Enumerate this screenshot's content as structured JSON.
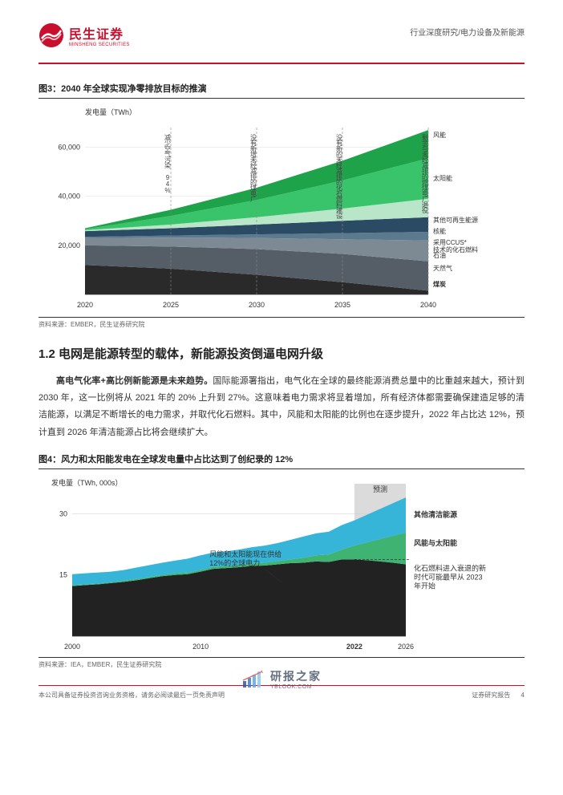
{
  "header": {
    "logo_cn": "民生证券",
    "logo_en": "MINSHENG SECURITIES",
    "right": "行业深度研究/电力设备及新能源",
    "logo_color": "#c8102e"
  },
  "fig3": {
    "title": "图3：2040 年全球实现净零排放目标的推演",
    "y_title": "发电量（TWh）",
    "x_ticks": [
      "2020",
      "2025",
      "2030",
      "2035",
      "2040"
    ],
    "y_ticks": [
      "20,000",
      "40,000",
      "60,000"
    ],
    "y_max": 70000,
    "vertical_labels": [
      "减少空气污染 94%",
      "没有新增未经减排的煤电厂",
      "没有新的未经减排的化石燃料建设",
      "剩余与未经减排的燃煤电厂退役"
    ],
    "series": [
      {
        "name": "风能",
        "color": "#1fa34a",
        "top": [
          27000,
          34500,
          43500,
          54500,
          67000
        ]
      },
      {
        "name": "太阳能",
        "color": "#39c46c",
        "top": [
          26600,
          32000,
          38500,
          46500,
          55500
        ]
      },
      {
        "name": "其他可再生能源",
        "color": "#b9e6c9",
        "top": [
          26200,
          28500,
          31500,
          35000,
          39000
        ]
      },
      {
        "name": "核能",
        "color": "#2b4a63",
        "top": [
          25800,
          27000,
          28500,
          30000,
          31500
        ]
      },
      {
        "name": "采用CCUS*技术的化石燃料",
        "color": "#5c7a8e",
        "top": [
          23500,
          24000,
          24500,
          25000,
          25500
        ],
        "light": true
      },
      {
        "name": "石油",
        "color": "#7d8a94",
        "top": [
          23000,
          23200,
          23000,
          22500,
          22000
        ]
      },
      {
        "name": "天然气",
        "color": "#555e66",
        "top": [
          20000,
          19500,
          18500,
          16500,
          13500
        ]
      },
      {
        "name": "煤炭",
        "color": "#2a2a2a",
        "top": [
          12000,
          10500,
          8000,
          5000,
          1500
        ],
        "bold": true
      }
    ],
    "source": "资料来源：EMBER，民生证券研究院"
  },
  "section": {
    "heading": "1.2 电网是能源转型的载体，新能源投资倒逼电网升级",
    "para": "<b>高电气化率+高比例新能源是未来趋势。</b>国际能源署指出，电气化在全球的最终能源消费总量中的比重越来越大，预计到 2030 年，这一比例将从 2021 年的 20% 上升到 27%。这意味着电力需求将显着增加，所有经济体都需要确保建造足够的清洁能源，以满足不断增长的电力需求，并取代化石燃料。其中，风能和太阳能的比例也在逐步提升，2022 年占比达 12%，预计直到 2026 年清洁能源占比将会继续扩大。"
  },
  "fig4": {
    "title": "图4：风力和太阳能发电在全球发电量中占比达到了创纪录的 12%",
    "y_title": "发电量（TWh, 000s）",
    "x_ticks": [
      "2000",
      "2010",
      "2022",
      "2026"
    ],
    "x_positions": [
      0,
      0.385,
      0.846,
      1.0
    ],
    "y_ticks": [
      "15",
      "30"
    ],
    "y_max": 35,
    "forecast_label": "预测",
    "forecast_start": 0.846,
    "series": [
      {
        "name": "其他清洁能源",
        "color": "#36b5d8",
        "values": [
          15.2,
          15.4,
          15.6,
          15.8,
          16.2,
          16.8,
          17.4,
          18.0,
          18.5,
          19.0,
          19.8,
          20.5,
          20.8,
          21.2,
          21.8,
          22.2,
          22.8,
          23.6,
          24.4,
          25.2,
          25.6,
          27.2,
          28.4,
          29.8,
          31.2,
          32.6,
          34.0
        ]
      },
      {
        "name": "风能与太阳能",
        "color": "#3fb371",
        "values": [
          12.5,
          12.7,
          12.9,
          13.2,
          13.6,
          14.0,
          14.5,
          15.0,
          15.4,
          15.6,
          16.2,
          17.0,
          17.2,
          17.4,
          17.8,
          18.0,
          18.4,
          18.8,
          19.2,
          19.8,
          20.0,
          21.2,
          22.2,
          23.0,
          23.8,
          24.6,
          25.4
        ]
      },
      {
        "name": "化石燃料",
        "color": "#222222",
        "values": [
          12.3,
          12.5,
          12.7,
          13.0,
          13.3,
          13.7,
          14.2,
          14.7,
          15.0,
          15.2,
          15.8,
          16.5,
          16.7,
          16.9,
          17.2,
          17.3,
          17.6,
          17.9,
          18.0,
          18.3,
          18.2,
          18.8,
          18.8,
          18.6,
          18.3,
          18.0,
          17.6
        ]
      }
    ],
    "anno1": "风能和太阳能现在供给\n12%的全球电力",
    "anno2": "化石燃料进入衰退的新\n时代可能最早从 2023\n年开始",
    "source": "资料来源：IEA，EMBER，民生证券研究院"
  },
  "footer": {
    "left": "本公司具备证券投资咨询业务资格，请务必阅读最后一页免责声明",
    "right_a": "证券研究报告",
    "right_b": "4"
  },
  "watermark": {
    "cn": "研报之家",
    "en": "YBLOOK.COM",
    "bar_colors": [
      "#2c5aa0",
      "#3b7dd8",
      "#5fa8e8",
      "#8fc8f0"
    ]
  }
}
